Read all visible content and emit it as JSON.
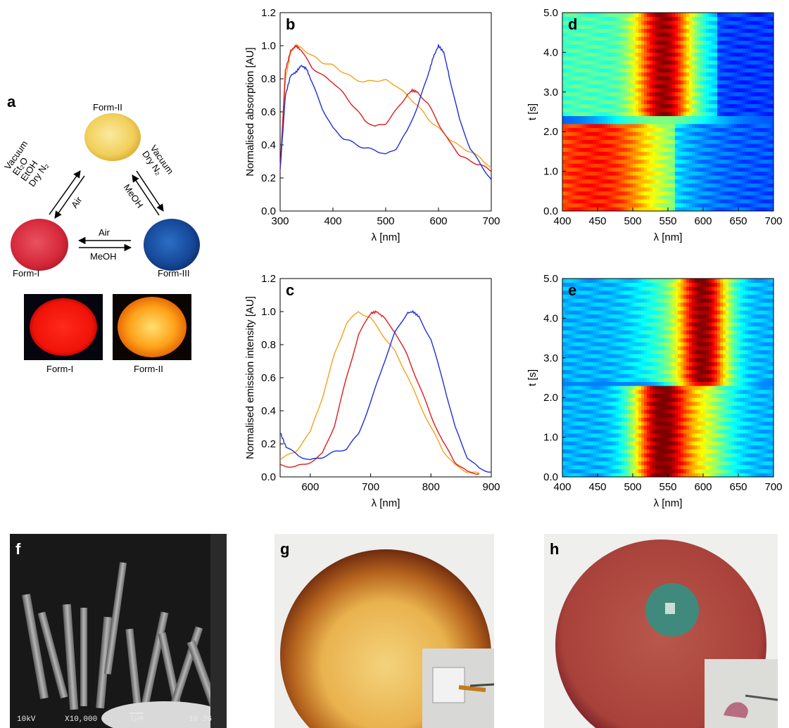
{
  "panels": {
    "a": {
      "letter": "a",
      "forms": {
        "form1": "Form-I",
        "form2": "Form-II",
        "form3": "Form-III"
      },
      "arrows": {
        "f1_to_f2": [
          "Vacuum",
          "Et₂O",
          "EtOH",
          "Dry N₂"
        ],
        "f2_to_f1": "Air",
        "f2_to_f3": [
          "Vacuum",
          "Dry N₂"
        ],
        "f3_to_f2": "MeOH",
        "f3_to_f1": "Air",
        "f1_to_f3": "MeOH"
      },
      "emission_labels": [
        "Form-I",
        "Form-II"
      ]
    },
    "b": {
      "letter": "b"
    },
    "c": {
      "letter": "c"
    },
    "d": {
      "letter": "d"
    },
    "e": {
      "letter": "e"
    },
    "f": {
      "letter": "f",
      "sem_text": [
        "10kV",
        "X10,000",
        "1μm",
        "10 26"
      ]
    },
    "g": {
      "letter": "g"
    },
    "h": {
      "letter": "h"
    }
  },
  "colors": {
    "form1": "#e01b1b",
    "form2": "#f5a21a",
    "form3": "#1f2fd6"
  },
  "chart_data": [
    {
      "panel": "b",
      "type": "line",
      "xlabel": "λ [nm]",
      "ylabel": "Normalised absorption [AU]",
      "xlim": [
        300,
        700
      ],
      "ylim": [
        0,
        1.2
      ],
      "xticks": [
        "300",
        "400",
        "500",
        "600",
        "700"
      ],
      "yticks": [
        "0.0",
        "0.2",
        "0.4",
        "0.6",
        "0.8",
        "1.0",
        "1.2"
      ],
      "series": [
        {
          "color": "#f5a21a",
          "x": [
            300,
            310,
            320,
            330,
            340,
            360,
            380,
            400,
            420,
            440,
            460,
            480,
            500,
            520,
            540,
            560,
            580,
            600,
            620,
            640,
            660,
            680,
            700
          ],
          "y": [
            0.25,
            0.8,
            0.96,
            1.0,
            0.99,
            0.94,
            0.9,
            0.88,
            0.84,
            0.8,
            0.78,
            0.79,
            0.79,
            0.76,
            0.7,
            0.64,
            0.56,
            0.5,
            0.44,
            0.39,
            0.36,
            0.32,
            0.26
          ]
        },
        {
          "color": "#e01b1b",
          "x": [
            300,
            310,
            320,
            330,
            340,
            360,
            380,
            400,
            420,
            440,
            460,
            480,
            500,
            520,
            540,
            550,
            560,
            580,
            600,
            620,
            640,
            660,
            680,
            700
          ],
          "y": [
            0.25,
            0.85,
            0.97,
            1.0,
            0.97,
            0.87,
            0.82,
            0.78,
            0.71,
            0.63,
            0.55,
            0.51,
            0.53,
            0.61,
            0.7,
            0.73,
            0.72,
            0.65,
            0.53,
            0.42,
            0.34,
            0.3,
            0.28,
            0.24
          ]
        },
        {
          "color": "#1f2fd6",
          "x": [
            300,
            310,
            320,
            330,
            340,
            350,
            360,
            380,
            400,
            420,
            440,
            460,
            480,
            500,
            520,
            540,
            560,
            580,
            590,
            600,
            610,
            620,
            640,
            660,
            680,
            700
          ],
          "y": [
            0.25,
            0.7,
            0.82,
            0.84,
            0.88,
            0.86,
            0.78,
            0.62,
            0.5,
            0.44,
            0.41,
            0.38,
            0.37,
            0.34,
            0.38,
            0.48,
            0.63,
            0.82,
            0.93,
            1.0,
            0.96,
            0.82,
            0.55,
            0.38,
            0.28,
            0.19
          ]
        }
      ]
    },
    {
      "panel": "c",
      "type": "line",
      "xlabel": "λ [nm]",
      "ylabel": "Normalised emission intensity [AU]",
      "xlim": [
        550,
        900
      ],
      "ylim": [
        0,
        1.2
      ],
      "xticks": [
        "600",
        "700",
        "800",
        "900"
      ],
      "yticks": [
        "0.0",
        "0.2",
        "0.4",
        "0.6",
        "0.8",
        "1.0",
        "1.2"
      ],
      "series": [
        {
          "color": "#f5a21a",
          "x": [
            550,
            575,
            600,
            620,
            640,
            660,
            680,
            700,
            720,
            740,
            760,
            780,
            800,
            820,
            840,
            860,
            880
          ],
          "y": [
            0.11,
            0.15,
            0.27,
            0.48,
            0.74,
            0.93,
            1.0,
            0.96,
            0.86,
            0.76,
            0.62,
            0.45,
            0.3,
            0.16,
            0.07,
            0.03,
            0.02
          ]
        },
        {
          "color": "#e01b1b",
          "x": [
            550,
            575,
            600,
            620,
            640,
            660,
            680,
            700,
            710,
            720,
            740,
            760,
            780,
            800,
            820,
            840,
            860,
            880
          ],
          "y": [
            0.07,
            0.06,
            0.09,
            0.14,
            0.31,
            0.6,
            0.86,
            0.99,
            1.0,
            0.97,
            0.88,
            0.74,
            0.56,
            0.37,
            0.21,
            0.09,
            0.03,
            0.02
          ]
        },
        {
          "color": "#1f2fd6",
          "x": [
            550,
            560,
            580,
            600,
            620,
            640,
            660,
            680,
            700,
            720,
            740,
            760,
            770,
            780,
            800,
            820,
            840,
            860,
            880,
            900
          ],
          "y": [
            0.27,
            0.18,
            0.13,
            0.1,
            0.12,
            0.15,
            0.17,
            0.26,
            0.45,
            0.67,
            0.87,
            0.99,
            1.0,
            0.97,
            0.83,
            0.58,
            0.3,
            0.12,
            0.05,
            0.03
          ]
        }
      ]
    },
    {
      "panel": "d",
      "type": "heatmap",
      "xlabel": "λ [nm]",
      "ylabel": "t [s]",
      "xlim": [
        400,
        700
      ],
      "ylim": [
        0,
        5.0
      ],
      "xticks": [
        "400",
        "450",
        "500",
        "550",
        "600",
        "650",
        "700"
      ],
      "yticks": [
        "0.0",
        "1.0",
        "2.0",
        "3.0",
        "4.0",
        "5.0"
      ],
      "colormap": "jet",
      "transition_t": 2.3
    },
    {
      "panel": "e",
      "type": "heatmap",
      "xlabel": "λ [nm]",
      "ylabel": "t [s]",
      "xlim": [
        400,
        700
      ],
      "ylim": [
        0,
        5.0
      ],
      "xticks": [
        "400",
        "450",
        "500",
        "550",
        "600",
        "650",
        "700"
      ],
      "yticks": [
        "0.0",
        "1.0",
        "2.0",
        "3.0",
        "4.0",
        "5.0"
      ],
      "colormap": "jet",
      "transition_t": 2.35
    }
  ]
}
